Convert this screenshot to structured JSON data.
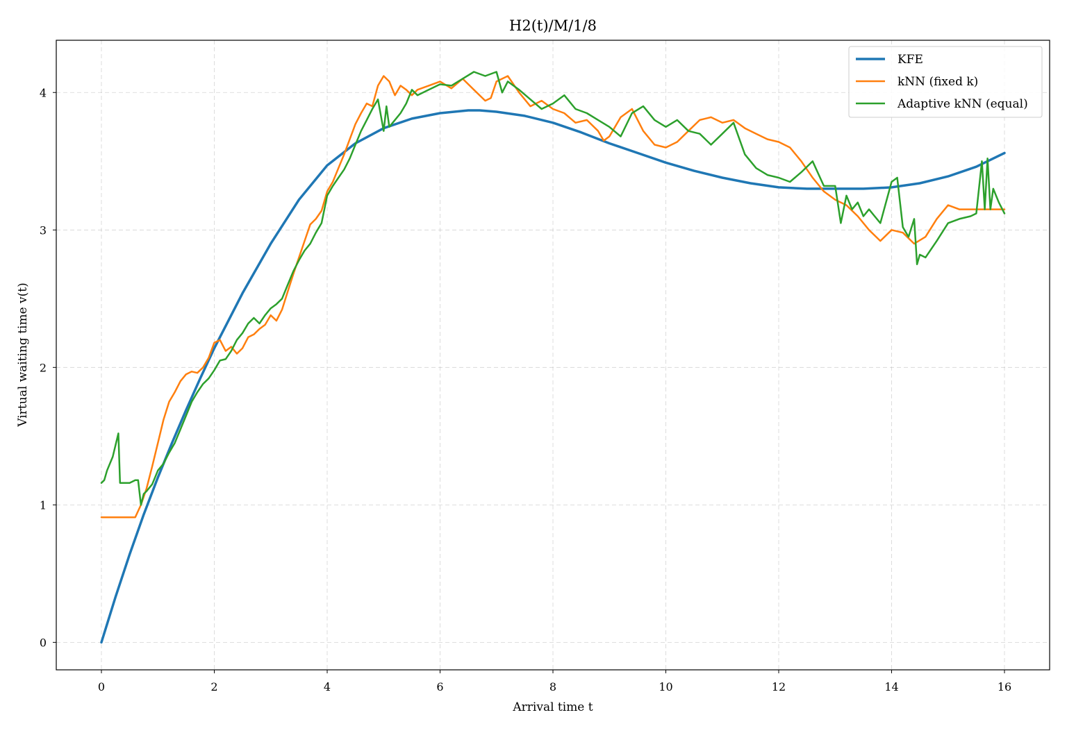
{
  "chart_data": {
    "type": "line",
    "title": "H2(t)/M/1/8",
    "xlabel": "Arrival time t",
    "ylabel": "Virtual waiting time v(t)",
    "xlim": [
      -0.8,
      16.8
    ],
    "ylim": [
      -0.2,
      4.38
    ],
    "xticks": [
      0,
      2,
      4,
      6,
      8,
      10,
      12,
      14,
      16
    ],
    "yticks": [
      0,
      1,
      2,
      3,
      4
    ],
    "grid": true,
    "legend": "top-right",
    "series": [
      {
        "name": "KFE",
        "color": "#1f77b4",
        "width": 3.5,
        "x": [
          0,
          0.25,
          0.5,
          0.75,
          1,
          1.25,
          1.5,
          1.75,
          2,
          2.5,
          3,
          3.5,
          4,
          4.5,
          5,
          5.5,
          6,
          6.5,
          6.7,
          7,
          7.5,
          8,
          8.5,
          9,
          9.5,
          10,
          10.5,
          11,
          11.5,
          12,
          12.5,
          13,
          13.3,
          13.5,
          14,
          14.5,
          15,
          15.5,
          16
        ],
        "y": [
          0,
          0.33,
          0.64,
          0.93,
          1.2,
          1.45,
          1.69,
          1.92,
          2.14,
          2.54,
          2.9,
          3.22,
          3.47,
          3.63,
          3.74,
          3.81,
          3.85,
          3.87,
          3.87,
          3.86,
          3.83,
          3.78,
          3.71,
          3.63,
          3.56,
          3.49,
          3.43,
          3.38,
          3.34,
          3.31,
          3.3,
          3.3,
          3.3,
          3.3,
          3.31,
          3.34,
          3.39,
          3.46,
          3.56
        ]
      },
      {
        "name": "kNN (fixed k)",
        "color": "#ff7f0e",
        "width": 2.5,
        "x": [
          0,
          0.3,
          0.6,
          0.7,
          0.8,
          0.9,
          1.0,
          1.1,
          1.2,
          1.3,
          1.4,
          1.5,
          1.6,
          1.7,
          1.8,
          1.9,
          2.0,
          2.1,
          2.2,
          2.3,
          2.4,
          2.5,
          2.6,
          2.7,
          2.8,
          2.9,
          3.0,
          3.1,
          3.2,
          3.3,
          3.4,
          3.5,
          3.6,
          3.7,
          3.8,
          3.9,
          4.0,
          4.1,
          4.2,
          4.3,
          4.4,
          4.5,
          4.6,
          4.7,
          4.8,
          4.9,
          5.0,
          5.1,
          5.2,
          5.3,
          5.4,
          5.5,
          5.6,
          5.8,
          6.0,
          6.2,
          6.4,
          6.6,
          6.8,
          6.9,
          7.0,
          7.2,
          7.4,
          7.6,
          7.8,
          8.0,
          8.2,
          8.4,
          8.6,
          8.8,
          8.9,
          9.0,
          9.2,
          9.4,
          9.6,
          9.8,
          10.0,
          10.2,
          10.4,
          10.6,
          10.8,
          11.0,
          11.2,
          11.4,
          11.6,
          11.8,
          12.0,
          12.2,
          12.4,
          12.6,
          12.8,
          13.0,
          13.2,
          13.4,
          13.6,
          13.8,
          14.0,
          14.2,
          14.4,
          14.6,
          14.8,
          15.0,
          15.2,
          15.4,
          15.6,
          15.8,
          16.0
        ],
        "y": [
          0.91,
          0.91,
          0.91,
          1.0,
          1.12,
          1.28,
          1.45,
          1.62,
          1.75,
          1.82,
          1.9,
          1.95,
          1.97,
          1.96,
          2.0,
          2.07,
          2.18,
          2.2,
          2.12,
          2.15,
          2.1,
          2.14,
          2.22,
          2.24,
          2.28,
          2.31,
          2.38,
          2.34,
          2.42,
          2.55,
          2.68,
          2.8,
          2.92,
          3.04,
          3.08,
          3.14,
          3.28,
          3.35,
          3.45,
          3.55,
          3.66,
          3.77,
          3.85,
          3.92,
          3.9,
          4.05,
          4.12,
          4.08,
          3.98,
          4.05,
          4.02,
          3.98,
          4.02,
          4.05,
          4.08,
          4.03,
          4.1,
          4.02,
          3.94,
          3.96,
          4.08,
          4.12,
          4.0,
          3.9,
          3.94,
          3.88,
          3.85,
          3.78,
          3.8,
          3.72,
          3.65,
          3.68,
          3.82,
          3.88,
          3.72,
          3.62,
          3.6,
          3.64,
          3.72,
          3.8,
          3.82,
          3.78,
          3.8,
          3.74,
          3.7,
          3.66,
          3.64,
          3.6,
          3.5,
          3.38,
          3.28,
          3.22,
          3.18,
          3.1,
          3.0,
          2.92,
          3.0,
          2.98,
          2.9,
          2.95,
          3.08,
          3.18,
          3.15,
          3.15,
          3.15,
          3.15,
          3.15
        ]
      },
      {
        "name": "Adaptive kNN (equal)",
        "color": "#2ca02c",
        "width": 2.5,
        "x": [
          0,
          0.05,
          0.1,
          0.2,
          0.3,
          0.33,
          0.36,
          0.5,
          0.6,
          0.65,
          0.7,
          0.75,
          0.8,
          0.9,
          1.0,
          1.1,
          1.2,
          1.3,
          1.4,
          1.5,
          1.6,
          1.7,
          1.8,
          1.9,
          2.0,
          2.1,
          2.2,
          2.3,
          2.4,
          2.5,
          2.6,
          2.7,
          2.8,
          2.9,
          3.0,
          3.1,
          3.2,
          3.3,
          3.4,
          3.5,
          3.6,
          3.7,
          3.8,
          3.9,
          4.0,
          4.1,
          4.2,
          4.3,
          4.4,
          4.5,
          4.6,
          4.7,
          4.8,
          4.9,
          5.0,
          5.05,
          5.1,
          5.2,
          5.3,
          5.4,
          5.5,
          5.6,
          5.8,
          6.0,
          6.2,
          6.4,
          6.6,
          6.8,
          7.0,
          7.1,
          7.2,
          7.4,
          7.6,
          7.8,
          8.0,
          8.2,
          8.4,
          8.6,
          8.8,
          9.0,
          9.2,
          9.4,
          9.6,
          9.8,
          10.0,
          10.2,
          10.4,
          10.6,
          10.8,
          11.0,
          11.2,
          11.4,
          11.6,
          11.8,
          12.0,
          12.2,
          12.4,
          12.6,
          12.8,
          13.0,
          13.1,
          13.2,
          13.3,
          13.4,
          13.5,
          13.6,
          13.7,
          13.8,
          14.0,
          14.1,
          14.2,
          14.3,
          14.4,
          14.45,
          14.5,
          14.6,
          14.8,
          15.0,
          15.2,
          15.4,
          15.5,
          15.6,
          15.65,
          15.7,
          15.75,
          15.8,
          15.9,
          16.0
        ],
        "y": [
          1.16,
          1.18,
          1.25,
          1.35,
          1.52,
          1.16,
          1.16,
          1.16,
          1.18,
          1.18,
          1.0,
          1.08,
          1.1,
          1.15,
          1.25,
          1.3,
          1.38,
          1.45,
          1.55,
          1.65,
          1.75,
          1.82,
          1.88,
          1.92,
          1.98,
          2.05,
          2.06,
          2.12,
          2.2,
          2.25,
          2.32,
          2.36,
          2.32,
          2.38,
          2.43,
          2.46,
          2.5,
          2.6,
          2.7,
          2.78,
          2.85,
          2.9,
          2.98,
          3.05,
          3.25,
          3.32,
          3.38,
          3.44,
          3.52,
          3.62,
          3.72,
          3.8,
          3.88,
          3.95,
          3.72,
          3.9,
          3.75,
          3.8,
          3.85,
          3.92,
          4.02,
          3.98,
          4.02,
          4.06,
          4.05,
          4.1,
          4.15,
          4.12,
          4.15,
          4.0,
          4.08,
          4.02,
          3.95,
          3.88,
          3.92,
          3.98,
          3.88,
          3.85,
          3.8,
          3.75,
          3.68,
          3.85,
          3.9,
          3.8,
          3.75,
          3.8,
          3.72,
          3.7,
          3.62,
          3.7,
          3.78,
          3.55,
          3.45,
          3.4,
          3.38,
          3.35,
          3.42,
          3.5,
          3.32,
          3.32,
          3.05,
          3.25,
          3.15,
          3.2,
          3.1,
          3.15,
          3.1,
          3.05,
          3.35,
          3.38,
          3.02,
          2.95,
          3.08,
          2.75,
          2.82,
          2.8,
          2.92,
          3.05,
          3.08,
          3.1,
          3.12,
          3.5,
          3.15,
          3.52,
          3.15,
          3.3,
          3.2,
          3.12
        ]
      }
    ]
  }
}
